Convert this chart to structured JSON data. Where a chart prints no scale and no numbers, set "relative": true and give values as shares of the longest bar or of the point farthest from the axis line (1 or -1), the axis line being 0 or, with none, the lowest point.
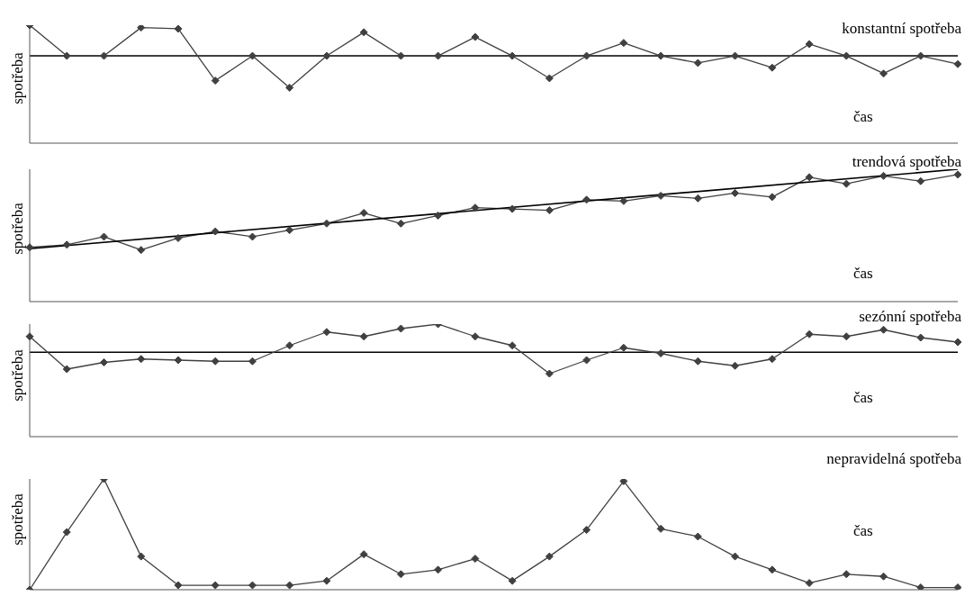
{
  "chart_data": [
    {
      "type": "line",
      "title": "konstantní spotřeba",
      "xlabel": "čas",
      "ylabel": "spotřeba",
      "relative": true,
      "marker": "diamond",
      "line_style": "solid",
      "grid": false,
      "legend": false,
      "categories": [
        null,
        null,
        null,
        null,
        null,
        null,
        null,
        null,
        null,
        null,
        null,
        null,
        null,
        null,
        null,
        null,
        null,
        null,
        null,
        null,
        null,
        null,
        null,
        null,
        null,
        null
      ],
      "series": [
        {
          "color": "#404040",
          "values": [
            1,
            0.74,
            0.74,
            0.98,
            0.97,
            0.53,
            0.74,
            0.47,
            0.74,
            0.94,
            0.74,
            0.74,
            0.9,
            0.74,
            0.55,
            0.74,
            0.85,
            0.74,
            0.68,
            0.74,
            0.64,
            0.84,
            0.74,
            0.59,
            0.74,
            0.67
          ]
        }
      ],
      "ref_lines": [
        {
          "axis": "y",
          "value": 0.74,
          "color": "#000000"
        }
      ]
    },
    {
      "type": "line",
      "title": "trendová spotřeba",
      "xlabel": "čas",
      "ylabel": "spotřeba",
      "relative": true,
      "marker": "diamond",
      "line_style": "solid",
      "grid": false,
      "legend": false,
      "categories": [
        null,
        null,
        null,
        null,
        null,
        null,
        null,
        null,
        null,
        null,
        null,
        null,
        null,
        null,
        null,
        null,
        null,
        null,
        null,
        null,
        null,
        null,
        null,
        null,
        null,
        null
      ],
      "series": [
        {
          "color": "#404040",
          "values": [
            0.41,
            0.43,
            0.49,
            0.39,
            0.48,
            0.53,
            0.49,
            0.54,
            0.59,
            0.67,
            0.59,
            0.65,
            0.71,
            0.7,
            0.69,
            0.77,
            0.76,
            0.8,
            0.78,
            0.82,
            0.79,
            0.94,
            0.89,
            0.95,
            0.91,
            0.96
          ]
        },
        {
          "type": "line",
          "marker": "none",
          "color": "#000000",
          "values": [
            0.4,
            null,
            null,
            null,
            null,
            null,
            null,
            null,
            null,
            null,
            null,
            null,
            null,
            null,
            null,
            null,
            null,
            null,
            null,
            null,
            null,
            null,
            null,
            null,
            null,
            1
          ]
        }
      ]
    },
    {
      "type": "line",
      "title": "sezónní spotřeba",
      "xlabel": "čas",
      "ylabel": "spotřeba",
      "relative": true,
      "marker": "diamond",
      "line_style": "solid",
      "grid": false,
      "legend": false,
      "categories": [
        null,
        null,
        null,
        null,
        null,
        null,
        null,
        null,
        null,
        null,
        null,
        null,
        null,
        null,
        null,
        null,
        null,
        null,
        null,
        null,
        null,
        null,
        null,
        null,
        null,
        null
      ],
      "series": [
        {
          "color": "#404040",
          "values": [
            0.89,
            0.6,
            0.66,
            0.69,
            0.68,
            0.67,
            0.67,
            0.81,
            0.93,
            0.89,
            0.96,
            1,
            0.89,
            0.81,
            0.56,
            0.68,
            0.79,
            0.74,
            0.67,
            0.63,
            0.69,
            0.91,
            0.89,
            0.95,
            0.88,
            0.84
          ]
        }
      ],
      "ref_lines": [
        {
          "axis": "y",
          "value": 0.75,
          "color": "#000000"
        }
      ]
    },
    {
      "type": "line",
      "title": "nepravidelná spotřeba",
      "xlabel": "čas",
      "ylabel": "spotřeba",
      "relative": true,
      "marker": "diamond",
      "line_style": "solid",
      "grid": false,
      "legend": false,
      "categories": [
        null,
        null,
        null,
        null,
        null,
        null,
        null,
        null,
        null,
        null,
        null,
        null,
        null,
        null,
        null,
        null,
        null,
        null,
        null,
        null,
        null,
        null,
        null,
        null,
        null,
        null
      ],
      "series": [
        {
          "color": "#404040",
          "values": [
            0,
            0.52,
            1,
            0.3,
            0.04,
            0.04,
            0.04,
            0.04,
            0.08,
            0.32,
            0.14,
            0.18,
            0.28,
            0.08,
            0.3,
            0.54,
            0.98,
            0.55,
            0.48,
            0.3,
            0.18,
            0.06,
            0.14,
            0.12,
            0.02,
            0.02
          ]
        }
      ]
    }
  ]
}
